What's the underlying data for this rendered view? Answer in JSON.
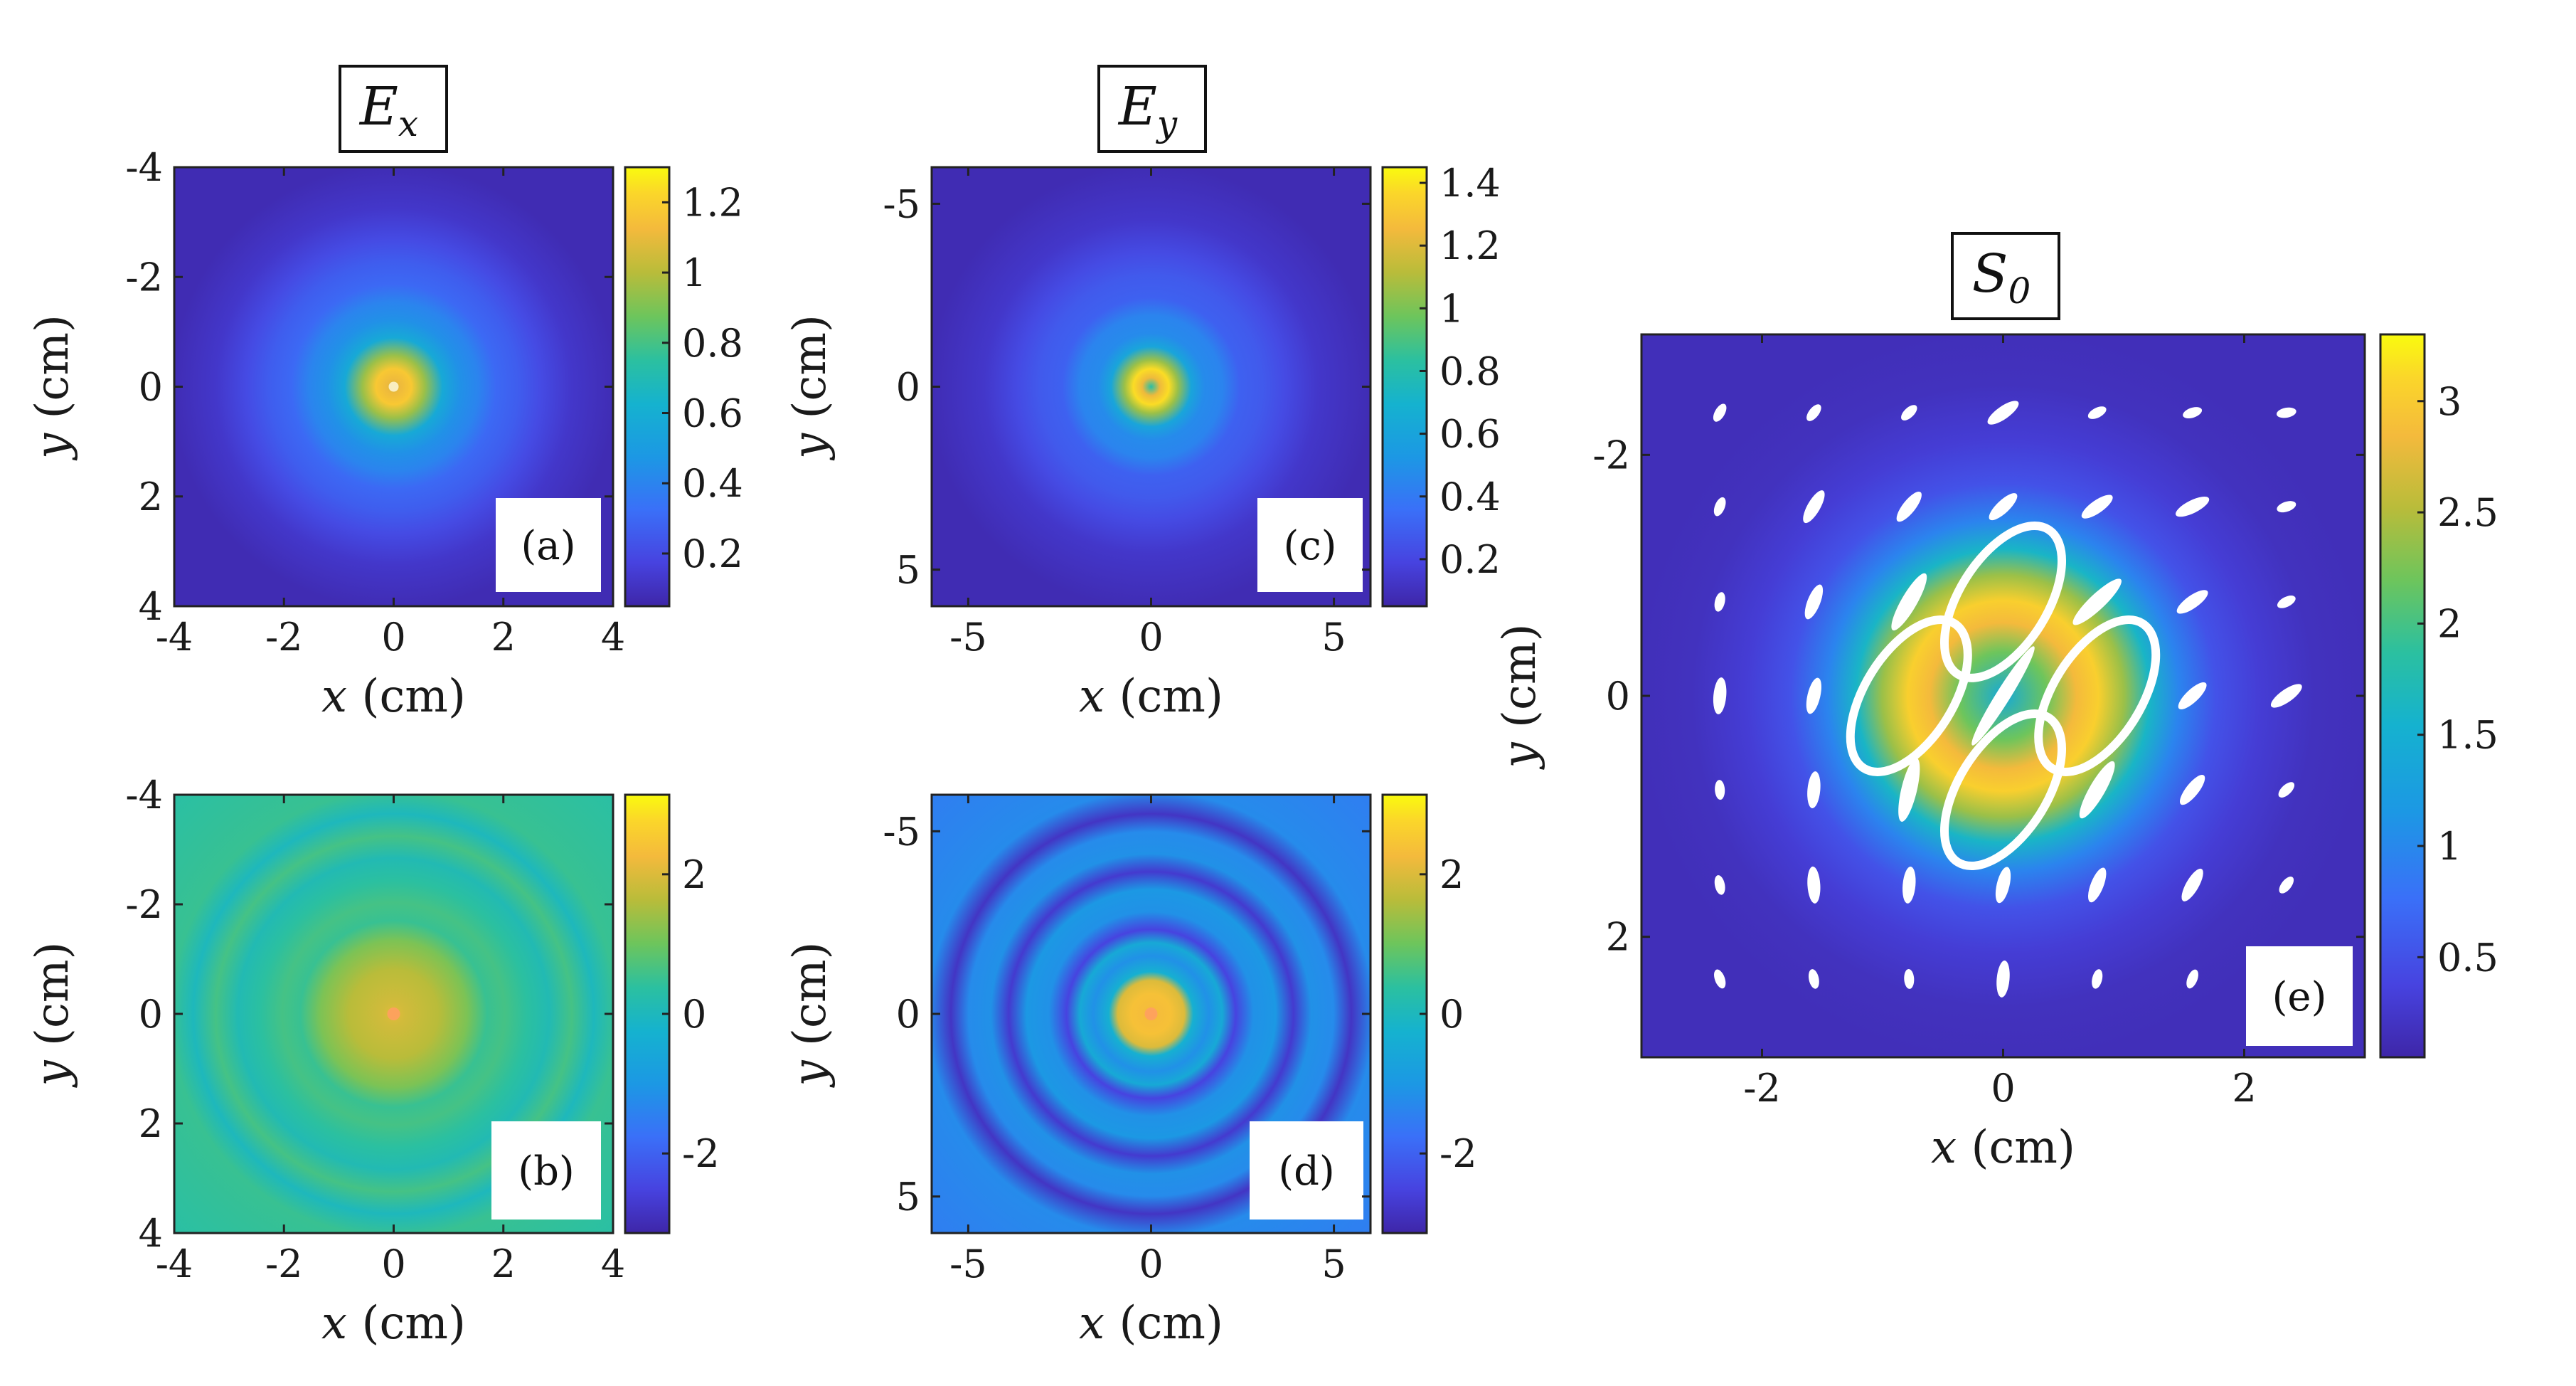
{
  "chart_data": [
    {
      "id": "a",
      "type": "heatmap",
      "panel_label": "(a)",
      "title": {
        "main": "E",
        "sub": "x"
      },
      "xlabel": {
        "var": "x",
        "unit": " (cm)"
      },
      "ylabel": {
        "var": "y",
        "unit": " (cm)"
      },
      "xlim": [
        -4,
        4
      ],
      "ylim": [
        -4,
        4
      ],
      "y_reversed": true,
      "xticks": [
        "-4",
        "-2",
        "0",
        "2",
        "4"
      ],
      "yticks": [
        "-4",
        "-2",
        "0",
        "2",
        "4"
      ],
      "colorbar": {
        "ticks": [
          "0.2",
          "0.4",
          "0.6",
          "0.8",
          "1",
          "1.2"
        ],
        "min": 0.05,
        "max": 1.3
      },
      "description": "annular intensity, peak ring near r=0.5 cm, weaker outer rings"
    },
    {
      "id": "b",
      "type": "heatmap",
      "panel_label": "(b)",
      "xlabel": {
        "var": "x",
        "unit": " (cm)"
      },
      "ylabel": {
        "var": "y",
        "unit": " (cm)"
      },
      "xlim": [
        -4,
        4
      ],
      "ylim": [
        -4,
        4
      ],
      "y_reversed": true,
      "xticks": [
        "-4",
        "-2",
        "0",
        "2",
        "4"
      ],
      "yticks": [
        "-4",
        "-2",
        "0",
        "2",
        "4"
      ],
      "colorbar": {
        "ticks": [
          "-2",
          "0",
          "2"
        ],
        "min": -3.14,
        "max": 3.14
      },
      "description": "phase map with concentric rings"
    },
    {
      "id": "c",
      "type": "heatmap",
      "panel_label": "(c)",
      "title": {
        "main": "E",
        "sub": "y"
      },
      "xlabel": {
        "var": "x",
        "unit": " (cm)"
      },
      "ylabel": {
        "var": "y",
        "unit": " (cm)"
      },
      "xlim": [
        -6,
        6
      ],
      "ylim": [
        -6,
        6
      ],
      "y_reversed": true,
      "xticks": [
        "-5",
        "0",
        "5"
      ],
      "yticks": [
        "-5",
        "0",
        "5"
      ],
      "colorbar": {
        "ticks": [
          "0.2",
          "0.4",
          "0.6",
          "0.8",
          "1",
          "1.2",
          "1.4"
        ],
        "min": 0.05,
        "max": 1.45
      },
      "description": "annular intensity, peak ring near r=0.5 cm"
    },
    {
      "id": "d",
      "type": "heatmap",
      "panel_label": "(d)",
      "xlabel": {
        "var": "x",
        "unit": " (cm)"
      },
      "ylabel": {
        "var": "y",
        "unit": " (cm)"
      },
      "xlim": [
        -6,
        6
      ],
      "ylim": [
        -6,
        6
      ],
      "y_reversed": true,
      "xticks": [
        "-5",
        "0",
        "5"
      ],
      "yticks": [
        "-5",
        "0",
        "5"
      ],
      "colorbar": {
        "ticks": [
          "-2",
          "0",
          "2"
        ],
        "min": -3.14,
        "max": 3.14
      },
      "description": "phase map with dark concentric rings"
    },
    {
      "id": "e",
      "type": "heatmap",
      "panel_label": "(e)",
      "title": {
        "main": "S",
        "sub": "0"
      },
      "xlabel": {
        "var": "x",
        "unit": " (cm)"
      },
      "ylabel": {
        "var": "y",
        "unit": " (cm)"
      },
      "xlim": [
        -3,
        3
      ],
      "ylim": [
        -3,
        3
      ],
      "y_reversed": true,
      "xticks": [
        "-2",
        "0",
        "2"
      ],
      "yticks": [
        "-2",
        "0",
        "2"
      ],
      "colorbar": {
        "ticks": [
          "0.5",
          "1",
          "1.5",
          "2",
          "2.5",
          "3"
        ],
        "min": 0.05,
        "max": 3.3
      },
      "description": "Stokes S0 intensity ring with white polarization ellipses overlaid on a 7x7 grid"
    }
  ]
}
